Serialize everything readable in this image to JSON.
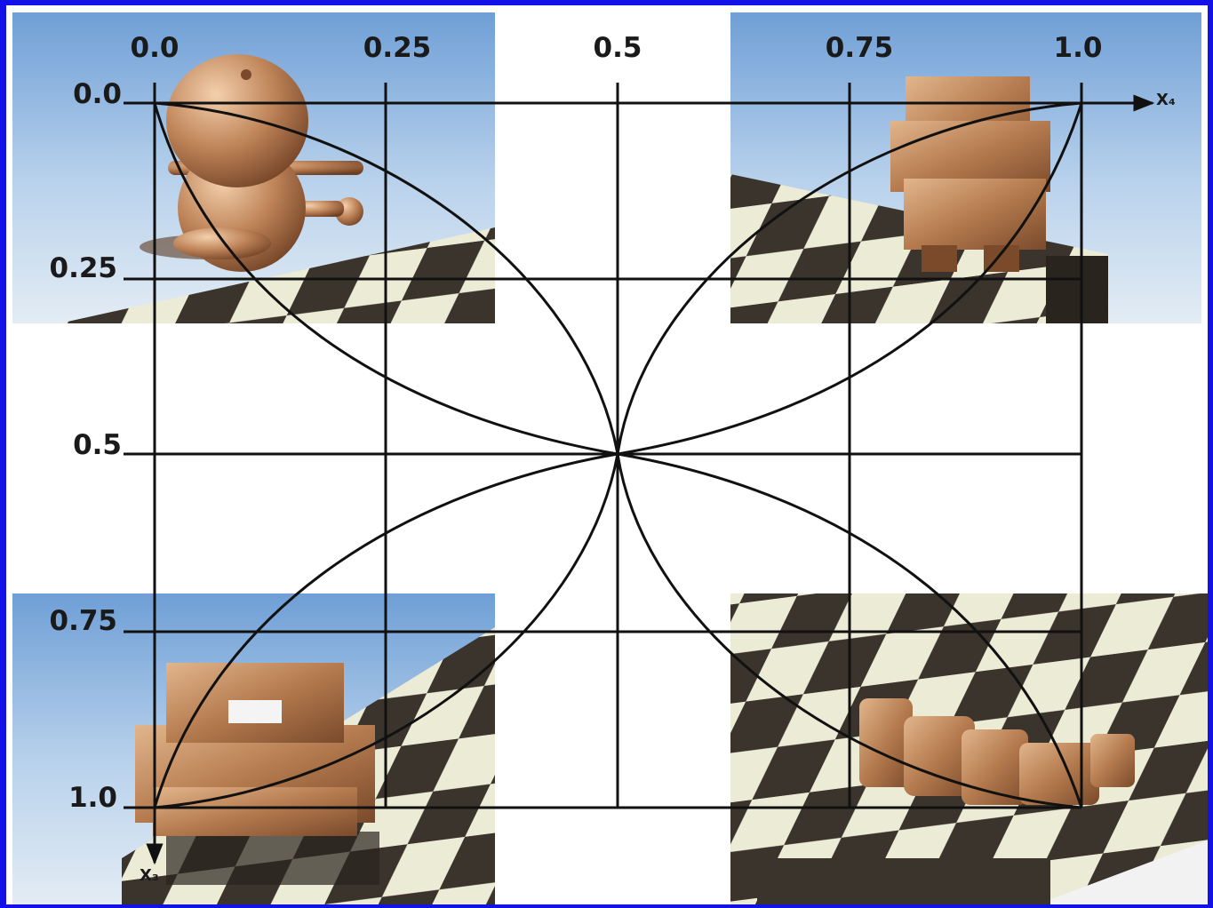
{
  "x_axis": {
    "name": "X₄",
    "ticks": [
      "0.0",
      "0.25",
      "0.5",
      "0.75",
      "1.0"
    ]
  },
  "y_axis": {
    "name": "X₃",
    "ticks": [
      "0.0",
      "0.25",
      "0.5",
      "0.75",
      "1.0"
    ]
  },
  "corner_images": [
    {
      "id": "top-left",
      "subject": "copper round robot figure on marble checkerboard"
    },
    {
      "id": "top-right",
      "subject": "wooden block robot figure on marble checkerboard"
    },
    {
      "id": "bottom-left",
      "subject": "wooden block vehicle on marble checkerboard"
    },
    {
      "id": "bottom-right",
      "subject": "collapsed wooden blocks on marble checkerboard"
    }
  ],
  "colors": {
    "frame": "#1212e8",
    "lines": "#111111",
    "background": "#ffffff"
  }
}
